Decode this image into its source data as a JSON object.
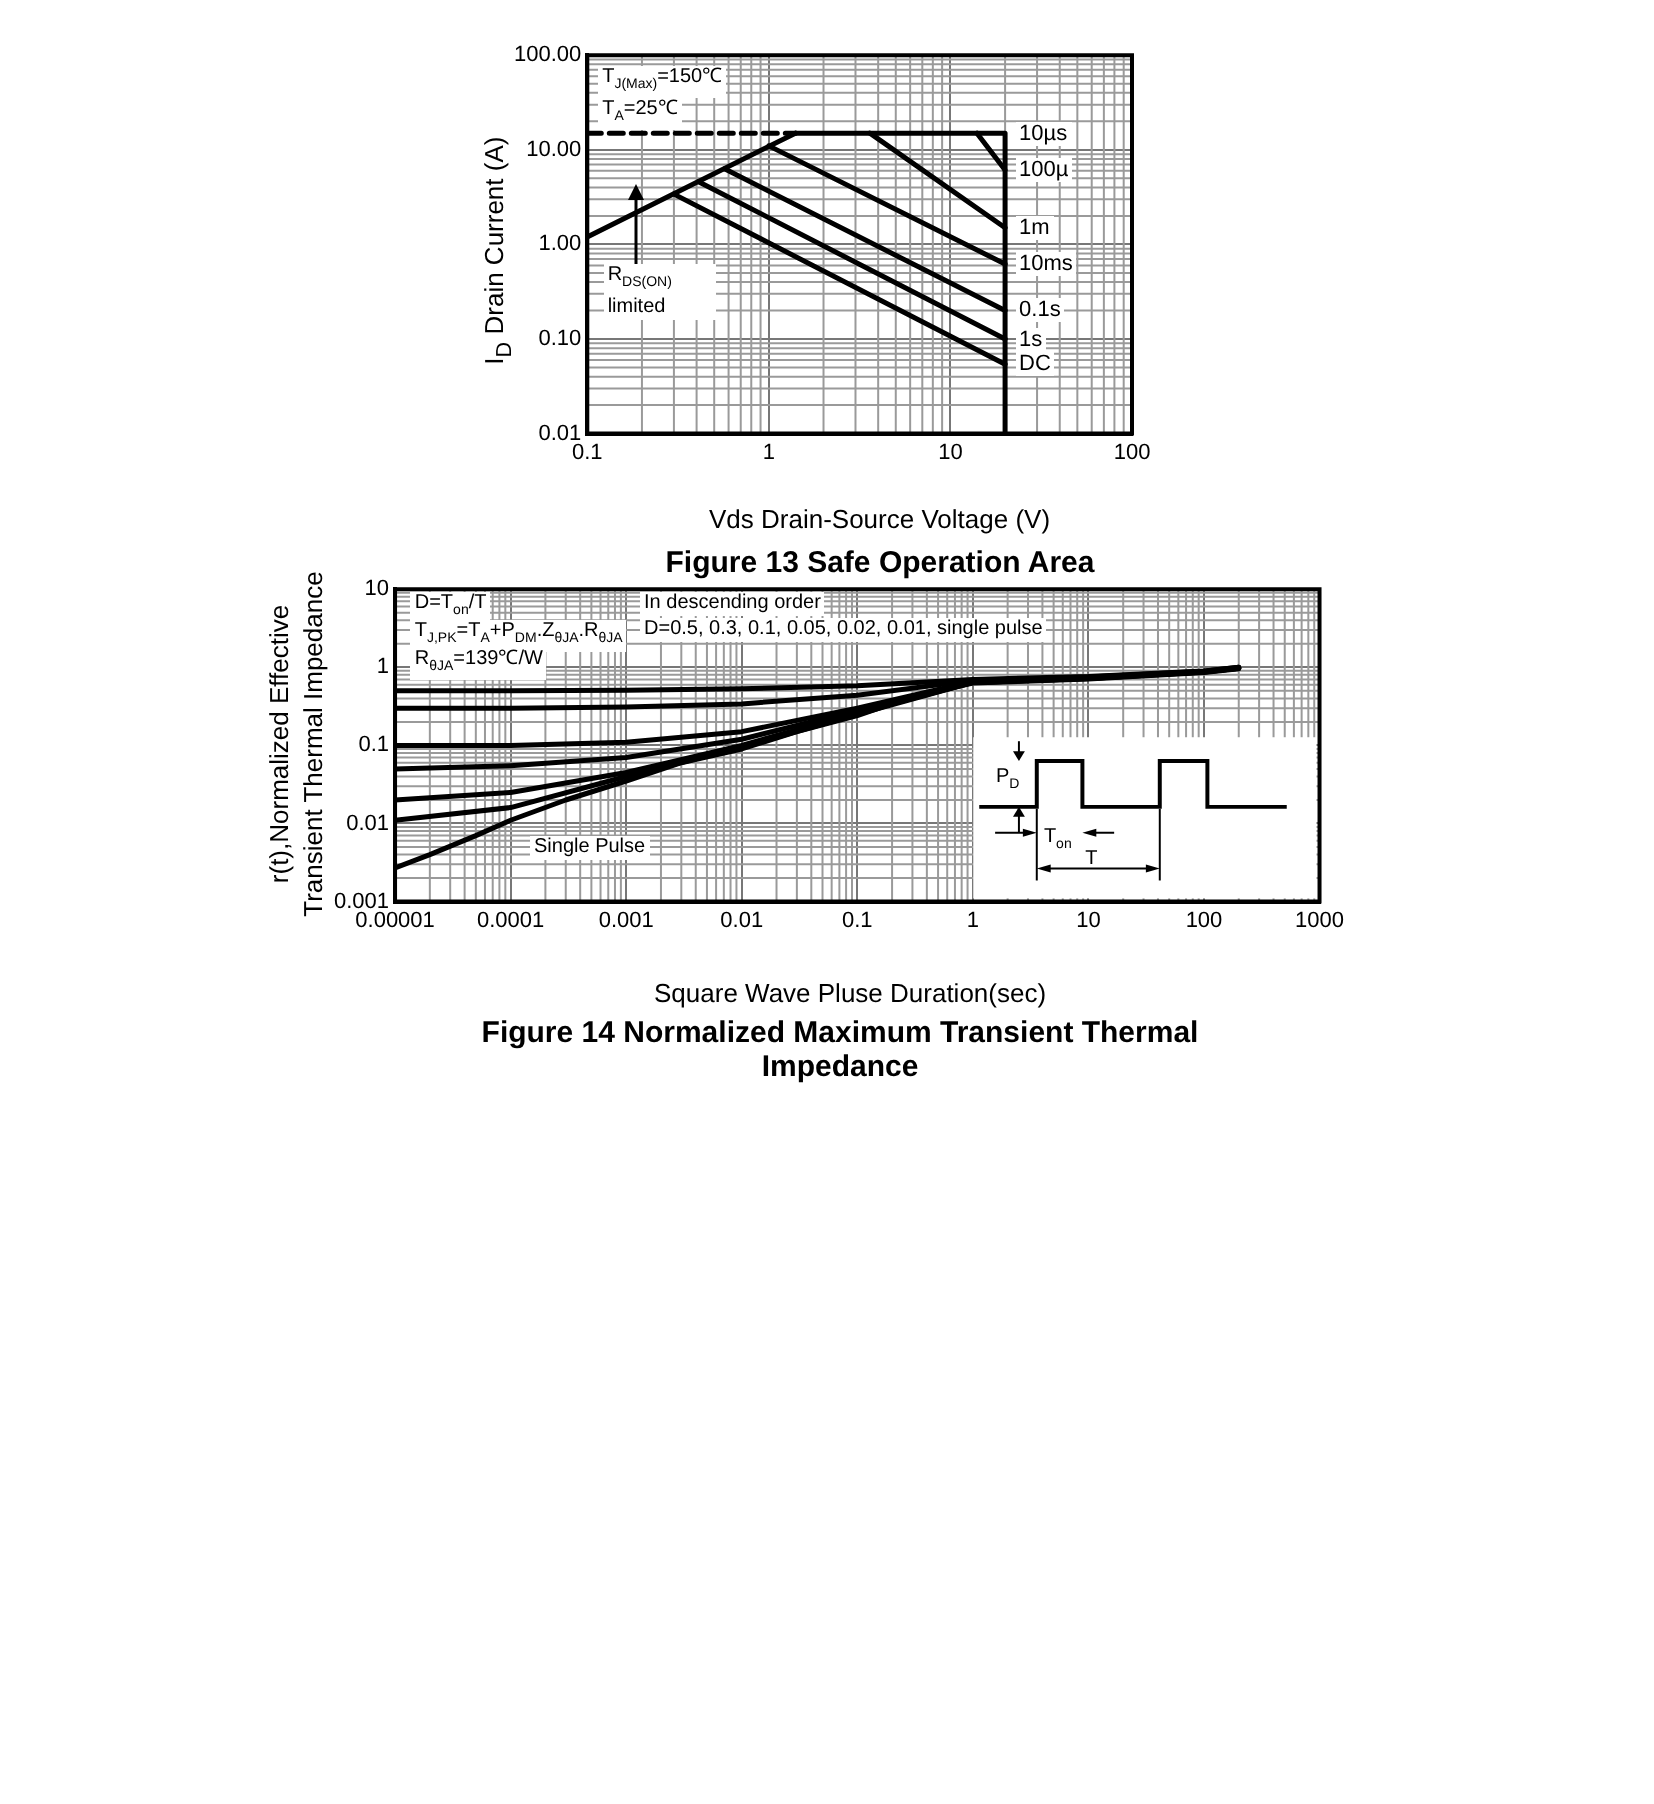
{
  "chart_data": [
    {
      "type": "line",
      "title": "Figure 13 Safe Operation Area",
      "xlabel": "Vds Drain-Source Voltage (V)",
      "ylabel": "I$_{D}$ Drain Current (A)",
      "log": "xy",
      "grid": true,
      "xlim": [
        0.1,
        100
      ],
      "ylim": [
        0.01,
        100
      ],
      "xticks": [
        0.1,
        1,
        10,
        100
      ],
      "yticks": [
        0.01,
        {
          "value": 0.1,
          "label": "0.10"
        },
        {
          "value": 1,
          "label": "1.00"
        },
        {
          "value": 10,
          "label": "10.00"
        },
        {
          "value": 100,
          "label": "100.00"
        }
      ],
      "series": [
        {
          "color": "#000000",
          "x": [
            0.1,
            1.4
          ],
          "values": [
            1.2,
            15
          ]
        },
        {
          "color": "#000000",
          "x": [
            0.1,
            1.4
          ],
          "values": [
            15,
            15
          ],
          "line_style": "dashed"
        },
        {
          "name": "10µs",
          "color": "#000000",
          "x": [
            1.4,
            20,
            20
          ],
          "values": [
            15,
            15,
            0.01
          ]
        },
        {
          "name": "100µ",
          "color": "#000000",
          "x": [
            14,
            20
          ],
          "values": [
            15,
            6.1
          ]
        },
        {
          "name": "1m",
          "color": "#000000",
          "x": [
            3.6,
            20
          ],
          "values": [
            15,
            1.5
          ]
        },
        {
          "name": "10ms",
          "color": "#000000",
          "x": [
            1,
            20
          ],
          "values": [
            11,
            0.62
          ]
        },
        {
          "name": "0.1s",
          "color": "#000000",
          "x": [
            0.57,
            20
          ],
          "values": [
            6.3,
            0.2
          ]
        },
        {
          "name": "1s",
          "color": "#000000",
          "x": [
            0.41,
            20
          ],
          "values": [
            4.6,
            0.1
          ]
        },
        {
          "name": "DC",
          "color": "#000000",
          "x": [
            0.3,
            20
          ],
          "values": [
            3.4,
            0.054
          ]
        }
      ],
      "annotations": [
        "T$_{J(Max)}$=150℃",
        "T$_{A}$=25℃",
        "R$_{DS(ON)}$ limited"
      ]
    },
    {
      "type": "line",
      "title": "Figure 14 Normalized Maximum Transient Thermal Impedance",
      "xlabel": "Square Wave Pluse Duration(sec)",
      "ylabel": "r(t),Normalized Effective Transient Thermal Impedance",
      "log": "xy",
      "grid": true,
      "xlim": [
        1e-05,
        1000
      ],
      "ylim": [
        0.001,
        10
      ],
      "xticks": [
        {
          "value": 1e-05,
          "label": "0.00001"
        },
        {
          "value": 0.0001,
          "label": "0.0001"
        },
        {
          "value": 0.001,
          "label": "0.001"
        },
        {
          "value": 0.01,
          "label": "0.01"
        },
        {
          "value": 0.1,
          "label": "0.1"
        },
        1,
        10,
        100,
        1000
      ],
      "yticks": [
        0.001,
        0.01,
        0.1,
        1,
        10
      ],
      "x": [
        1e-05,
        0.0001,
        0.001,
        0.01,
        0.1,
        1,
        10,
        100,
        200
      ],
      "series": [
        {
          "color": "#000000",
          "values": [
            0.5,
            0.5,
            0.51,
            0.53,
            0.58,
            0.7,
            0.76,
            0.9,
            1.0
          ]
        },
        {
          "color": "#000000",
          "values": [
            0.3,
            0.3,
            0.31,
            0.34,
            0.44,
            0.68,
            0.75,
            0.89,
            1.0
          ]
        },
        {
          "color": "#000000",
          "values": [
            0.1,
            0.1,
            0.11,
            0.15,
            0.3,
            0.66,
            0.74,
            0.88,
            0.98
          ]
        },
        {
          "color": "#000000",
          "values": [
            0.05,
            0.055,
            0.07,
            0.12,
            0.28,
            0.65,
            0.73,
            0.88,
            0.98
          ]
        },
        {
          "color": "#000000",
          "values": [
            0.02,
            0.025,
            0.045,
            0.1,
            0.26,
            0.64,
            0.72,
            0.87,
            0.97
          ]
        },
        {
          "color": "#000000",
          "values": [
            0.011,
            0.016,
            0.04,
            0.095,
            0.25,
            0.64,
            0.72,
            0.87,
            0.97
          ]
        },
        {
          "color": "#000000",
          "x": [
            1e-05,
            2e-05,
            5e-05,
            0.0001,
            0.0003,
            0.001,
            0.003,
            0.01,
            0.03,
            0.1,
            0.3,
            1,
            10,
            100,
            200
          ],
          "values": [
            0.0027,
            0.004,
            0.007,
            0.011,
            0.02,
            0.035,
            0.06,
            0.09,
            0.15,
            0.24,
            0.42,
            0.63,
            0.71,
            0.86,
            0.96
          ]
        }
      ],
      "annotations": [
        "D=T$_{on}$/T",
        "T$_{J,PK}$=T$_{A}$+P$_{DM}$.Z$_{θJA}$.R$_{θJA}$",
        "R$_{θJA}$=139℃/W",
        "In descending order",
        "D=0.5, 0.3, 0.1, 0.05, 0.02, 0.01, single pulse",
        "Single Pulse",
        "P$_{D}$",
        "T$_{on}$",
        "T"
      ]
    }
  ]
}
